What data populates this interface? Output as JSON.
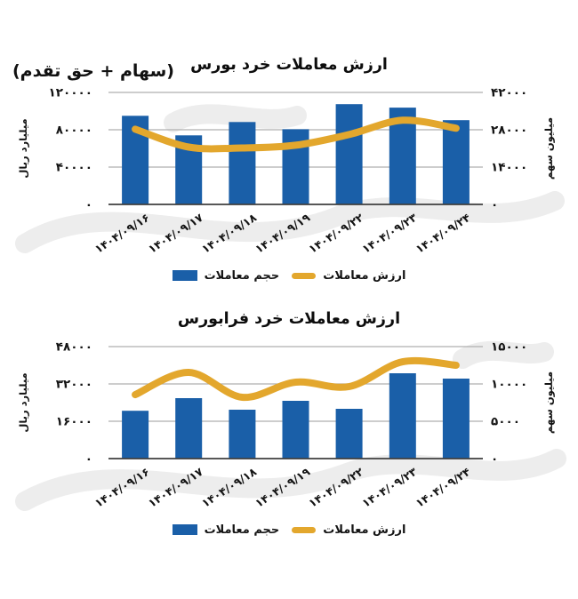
{
  "page": {
    "subtitle": "(سهام + حق تقدم)"
  },
  "colors": {
    "bar": "#1A5FA8",
    "line": "#E3A72D",
    "grid": "#AFAFAF",
    "axis_line": "#3F3F3F",
    "text": "#141414",
    "watermark": "#EDEDED"
  },
  "chart_data": [
    {
      "type": "bar",
      "title": "ارزش معاملات خرد بورس",
      "categories": [
        "۱۴۰۴/۰۹/۱۶",
        "۱۴۰۴/۰۹/۱۷",
        "۱۴۰۴/۰۹/۱۸",
        "۱۴۰۴/۰۹/۱۹",
        "۱۴۰۴/۰۹/۲۲",
        "۱۴۰۴/۰۹/۲۳",
        "۱۴۰۴/۰۹/۲۴"
      ],
      "series": [
        {
          "name": "حجم معاملات",
          "type": "bar",
          "axis": "right",
          "color": "#1A5FA8",
          "values": [
            33250,
            25900,
            30900,
            28200,
            37600,
            36300,
            31600
          ]
        },
        {
          "name": "ارزش معاملات",
          "type": "line",
          "axis": "left",
          "color": "#E3A72D",
          "values": [
            80600,
            61400,
            60500,
            63400,
            74900,
            90200,
            81600
          ]
        }
      ],
      "left_axis": {
        "label": "میلیارد ریال",
        "max": 120000,
        "ticks": [
          0,
          40000,
          80000,
          120000
        ],
        "tick_labels": [
          "۰",
          "۴۰۰۰۰",
          "۸۰۰۰۰",
          "۱۲۰۰۰۰"
        ]
      },
      "right_axis": {
        "label": "میلیون سهم",
        "max": 42000,
        "ticks": [
          0,
          14000,
          28000,
          42000
        ],
        "tick_labels": [
          "۰",
          "۱۴۰۰۰",
          "۲۸۰۰۰",
          "۴۲۰۰۰"
        ]
      },
      "grid": true,
      "legend_position": "bottom"
    },
    {
      "type": "bar",
      "title": "ارزش معاملات خرد فرابورس",
      "categories": [
        "۱۴۰۴/۰۹/۱۶",
        "۱۴۰۴/۰۹/۱۷",
        "۱۴۰۴/۰۹/۱۸",
        "۱۴۰۴/۰۹/۱۹",
        "۱۴۰۴/۰۹/۲۲",
        "۱۴۰۴/۰۹/۲۳",
        "۱۴۰۴/۰۹/۲۴"
      ],
      "series": [
        {
          "name": "حجم معاملات",
          "type": "bar",
          "axis": "right",
          "color": "#1A5FA8",
          "values": [
            6400,
            8100,
            6550,
            7740,
            6670,
            11430,
            10710
          ]
        },
        {
          "name": "ارزش معاملات",
          "type": "line",
          "axis": "left",
          "color": "#E3A72D",
          "values": [
            27400,
            36950,
            26300,
            32750,
            30860,
            41500,
            40000
          ]
        }
      ],
      "left_axis": {
        "label": "میلیارد ریال",
        "max": 48000,
        "ticks": [
          0,
          16000,
          32000,
          48000
        ],
        "tick_labels": [
          "۰",
          "۱۶۰۰۰",
          "۳۲۰۰۰",
          "۴۸۰۰۰"
        ]
      },
      "right_axis": {
        "label": "میلیون سهم",
        "max": 15000,
        "ticks": [
          0,
          5000,
          10000,
          15000
        ],
        "tick_labels": [
          "۰",
          "۵۰۰۰",
          "۱۰۰۰۰",
          "۱۵۰۰۰"
        ]
      },
      "grid": true,
      "legend_position": "bottom"
    }
  ]
}
